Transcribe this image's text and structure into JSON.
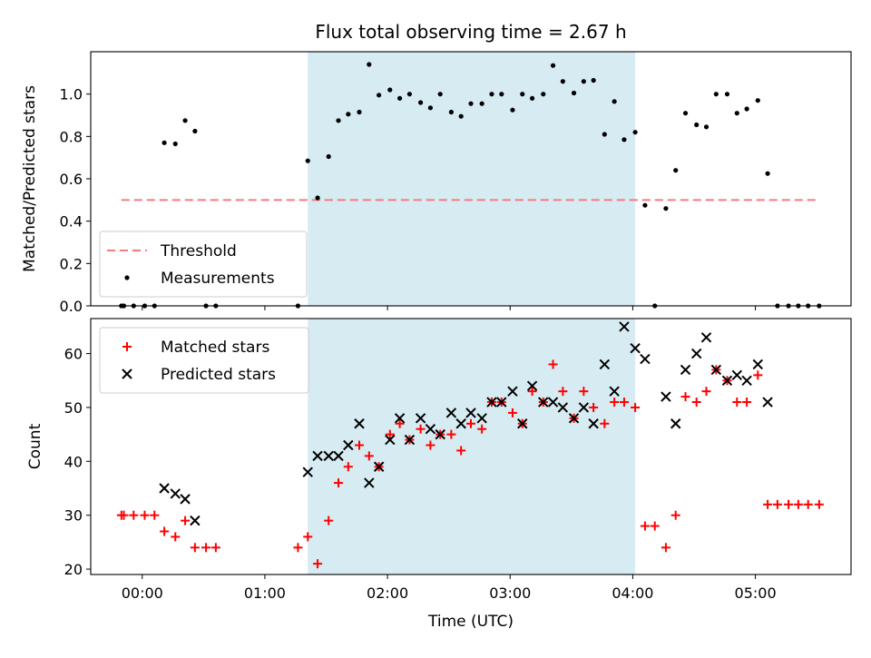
{
  "chart_data": {
    "title": "Flux total observing time = 2.67 h",
    "xlabel": "Time (UTC)",
    "x_unit": "hours after 00:00 UTC",
    "x_ticks": [
      0,
      1,
      2,
      3,
      4,
      5
    ],
    "x_tick_labels": [
      "00:00",
      "01:00",
      "02:00",
      "03:00",
      "04:00",
      "05:00"
    ],
    "xlim": [
      -0.42,
      5.78
    ],
    "highlight_span": [
      1.35,
      4.02
    ],
    "highlight_color": "#add8e6",
    "panels": [
      {
        "type": "scatter",
        "ylabel": "Matched/Predicted stars",
        "ylim": [
          0,
          1.2
        ],
        "y_ticks": [
          0.0,
          0.2,
          0.4,
          0.6,
          0.8,
          1.0
        ],
        "y_tick_labels": [
          "0.0",
          "0.2",
          "0.4",
          "0.6",
          "0.8",
          "1.0"
        ],
        "legend_position": "lower-left",
        "threshold": {
          "name": "Threshold",
          "y": 0.5,
          "x_range": [
            -0.17,
            5.5
          ],
          "color": "#f47c7c"
        },
        "series": [
          {
            "name": "Measurements",
            "color": "#000000",
            "marker": "dot",
            "points": [
              [
                -0.17,
                0
              ],
              [
                -0.15,
                0
              ],
              [
                -0.07,
                0
              ],
              [
                0.02,
                0
              ],
              [
                0.1,
                0
              ],
              [
                0.18,
                0.77
              ],
              [
                0.27,
                0.765
              ],
              [
                0.35,
                0.875
              ],
              [
                0.43,
                0.825
              ],
              [
                0.52,
                0
              ],
              [
                0.6,
                0
              ],
              [
                1.27,
                0
              ],
              [
                1.35,
                0.685
              ],
              [
                1.43,
                0.51
              ],
              [
                1.52,
                0.705
              ],
              [
                1.6,
                0.875
              ],
              [
                1.68,
                0.905
              ],
              [
                1.77,
                0.915
              ],
              [
                1.85,
                1.14
              ],
              [
                1.93,
                0.995
              ],
              [
                2.02,
                1.02
              ],
              [
                2.1,
                0.98
              ],
              [
                2.18,
                1.0
              ],
              [
                2.27,
                0.96
              ],
              [
                2.35,
                0.935
              ],
              [
                2.43,
                1.0
              ],
              [
                2.52,
                0.915
              ],
              [
                2.6,
                0.895
              ],
              [
                2.68,
                0.955
              ],
              [
                2.77,
                0.955
              ],
              [
                2.85,
                1.0
              ],
              [
                2.93,
                1.0
              ],
              [
                3.02,
                0.925
              ],
              [
                3.1,
                1.0
              ],
              [
                3.18,
                0.98
              ],
              [
                3.27,
                1.0
              ],
              [
                3.35,
                1.135
              ],
              [
                3.43,
                1.06
              ],
              [
                3.52,
                1.005
              ],
              [
                3.6,
                1.06
              ],
              [
                3.68,
                1.065
              ],
              [
                3.77,
                0.81
              ],
              [
                3.85,
                0.965
              ],
              [
                3.93,
                0.785
              ],
              [
                4.02,
                0.82
              ],
              [
                4.1,
                0.475
              ],
              [
                4.18,
                0
              ],
              [
                4.27,
                0.46
              ],
              [
                4.35,
                0.64
              ],
              [
                4.43,
                0.91
              ],
              [
                4.52,
                0.855
              ],
              [
                4.6,
                0.845
              ],
              [
                4.68,
                1.0
              ],
              [
                4.77,
                1.0
              ],
              [
                4.85,
                0.91
              ],
              [
                4.93,
                0.93
              ],
              [
                5.02,
                0.97
              ],
              [
                5.1,
                0.625
              ],
              [
                5.18,
                0
              ],
              [
                5.27,
                0
              ],
              [
                5.35,
                0
              ],
              [
                5.43,
                0
              ],
              [
                5.52,
                0
              ]
            ]
          }
        ]
      },
      {
        "type": "scatter",
        "ylabel": "Count",
        "ylim": [
          19,
          66.5
        ],
        "y_ticks": [
          20,
          30,
          40,
          50,
          60
        ],
        "y_tick_labels": [
          "20",
          "30",
          "40",
          "50",
          "60"
        ],
        "legend_position": "upper-left",
        "series": [
          {
            "name": "Matched stars",
            "color": "#ff0000",
            "marker": "plus",
            "points": [
              [
                -0.17,
                30
              ],
              [
                -0.15,
                30
              ],
              [
                -0.07,
                30
              ],
              [
                0.02,
                30
              ],
              [
                0.1,
                30
              ],
              [
                0.18,
                27
              ],
              [
                0.27,
                26
              ],
              [
                0.35,
                29
              ],
              [
                0.43,
                24
              ],
              [
                0.52,
                24
              ],
              [
                0.6,
                24
              ],
              [
                1.27,
                24
              ],
              [
                1.35,
                26
              ],
              [
                1.43,
                21
              ],
              [
                1.52,
                29
              ],
              [
                1.6,
                36
              ],
              [
                1.68,
                39
              ],
              [
                1.77,
                43
              ],
              [
                1.85,
                41
              ],
              [
                1.93,
                39
              ],
              [
                2.02,
                45
              ],
              [
                2.1,
                47
              ],
              [
                2.18,
                44
              ],
              [
                2.27,
                46
              ],
              [
                2.35,
                43
              ],
              [
                2.43,
                45
              ],
              [
                2.52,
                45
              ],
              [
                2.6,
                42
              ],
              [
                2.68,
                47
              ],
              [
                2.77,
                46
              ],
              [
                2.85,
                51
              ],
              [
                2.93,
                51
              ],
              [
                3.02,
                49
              ],
              [
                3.1,
                47
              ],
              [
                3.18,
                53
              ],
              [
                3.27,
                51
              ],
              [
                3.35,
                58
              ],
              [
                3.43,
                53
              ],
              [
                3.52,
                48
              ],
              [
                3.6,
                53
              ],
              [
                3.68,
                50
              ],
              [
                3.77,
                47
              ],
              [
                3.85,
                51
              ],
              [
                3.93,
                51
              ],
              [
                4.02,
                50
              ],
              [
                4.1,
                28
              ],
              [
                4.18,
                28
              ],
              [
                4.27,
                24
              ],
              [
                4.35,
                30
              ],
              [
                4.43,
                52
              ],
              [
                4.52,
                51
              ],
              [
                4.6,
                53
              ],
              [
                4.68,
                57
              ],
              [
                4.77,
                55
              ],
              [
                4.85,
                51
              ],
              [
                4.93,
                51
              ],
              [
                5.02,
                56
              ],
              [
                5.1,
                32
              ],
              [
                5.18,
                32
              ],
              [
                5.27,
                32
              ],
              [
                5.35,
                32
              ],
              [
                5.43,
                32
              ],
              [
                5.52,
                32
              ]
            ]
          },
          {
            "name": "Predicted stars",
            "color": "#000000",
            "marker": "x",
            "points": [
              [
                0.18,
                35
              ],
              [
                0.27,
                34
              ],
              [
                0.35,
                33
              ],
              [
                0.43,
                29
              ],
              [
                1.35,
                38
              ],
              [
                1.43,
                41
              ],
              [
                1.52,
                41
              ],
              [
                1.6,
                41
              ],
              [
                1.68,
                43
              ],
              [
                1.77,
                47
              ],
              [
                1.85,
                36
              ],
              [
                1.93,
                39
              ],
              [
                2.02,
                44
              ],
              [
                2.1,
                48
              ],
              [
                2.18,
                44
              ],
              [
                2.27,
                48
              ],
              [
                2.35,
                46
              ],
              [
                2.43,
                45
              ],
              [
                2.52,
                49
              ],
              [
                2.6,
                47
              ],
              [
                2.68,
                49
              ],
              [
                2.77,
                48
              ],
              [
                2.85,
                51
              ],
              [
                2.93,
                51
              ],
              [
                3.02,
                53
              ],
              [
                3.1,
                47
              ],
              [
                3.18,
                54
              ],
              [
                3.27,
                51
              ],
              [
                3.35,
                51
              ],
              [
                3.43,
                50
              ],
              [
                3.52,
                48
              ],
              [
                3.6,
                50
              ],
              [
                3.68,
                47
              ],
              [
                3.77,
                58
              ],
              [
                3.85,
                53
              ],
              [
                3.93,
                65
              ],
              [
                4.02,
                61
              ],
              [
                4.1,
                59
              ],
              [
                4.27,
                52
              ],
              [
                4.35,
                47
              ],
              [
                4.43,
                57
              ],
              [
                4.52,
                60
              ],
              [
                4.6,
                63
              ],
              [
                4.68,
                57
              ],
              [
                4.77,
                55
              ],
              [
                4.85,
                56
              ],
              [
                4.93,
                55
              ],
              [
                5.02,
                58
              ],
              [
                5.1,
                51
              ]
            ]
          }
        ]
      }
    ]
  }
}
